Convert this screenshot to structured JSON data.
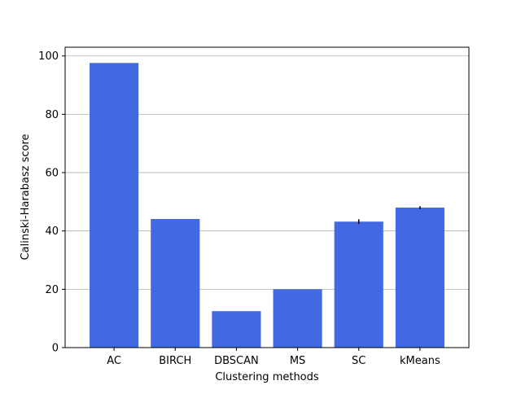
{
  "chart_data": {
    "type": "bar",
    "title": "",
    "xlabel": "Clustering methods",
    "ylabel": "Calinski-Harabasz score",
    "categories": [
      "AC",
      "BIRCH",
      "DBSCAN",
      "MS",
      "SC",
      "kMeans"
    ],
    "values": [
      97.6,
      44.1,
      12.5,
      20.0,
      43.2,
      48.0
    ],
    "errors": [
      0,
      0,
      0,
      0,
      0.8,
      0.5
    ],
    "ylim": [
      0,
      103
    ],
    "yticks": [
      0,
      20,
      40,
      60,
      80,
      100
    ],
    "grid": "y",
    "bar_color": "#4169e1",
    "grid_color": "#b0b0b0",
    "axis_color": "#000000"
  }
}
